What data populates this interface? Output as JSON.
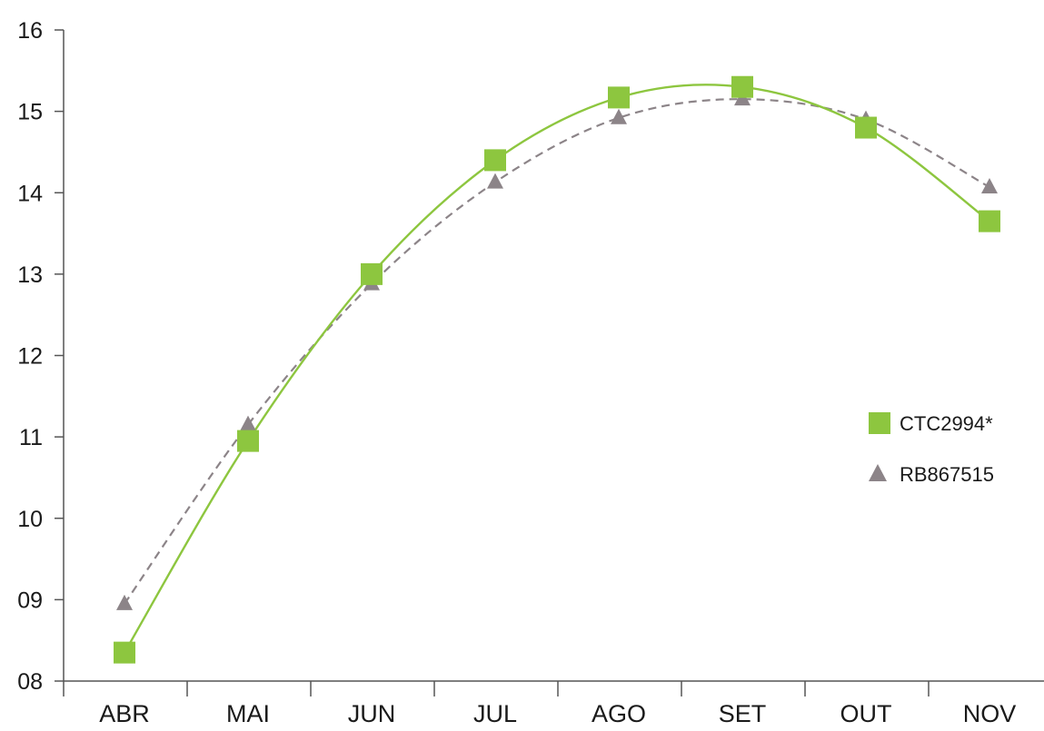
{
  "chart_data": {
    "type": "line",
    "title": "",
    "xlabel": "",
    "ylabel": "",
    "categories": [
      "ABR",
      "MAI",
      "JUN",
      "JUL",
      "AGO",
      "SET",
      "OUT",
      "NOV"
    ],
    "y_tick_labels": [
      "08",
      "09",
      "10",
      "11",
      "12",
      "13",
      "14",
      "15",
      "16"
    ],
    "ylim": [
      8,
      16
    ],
    "grid": false,
    "legend_position": "right",
    "series": [
      {
        "name": "CTC2994*",
        "values": [
          8.35,
          10.95,
          13.0,
          14.4,
          15.17,
          15.3,
          14.8,
          13.65
        ],
        "color": "#8dc63f",
        "marker": "square",
        "line_style": "solid"
      },
      {
        "name": "RB867515",
        "values": [
          8.95,
          11.15,
          12.88,
          14.13,
          14.92,
          15.15,
          14.9,
          14.07
        ],
        "color": "#8c8488",
        "marker": "triangle",
        "line_style": "dashed"
      }
    ]
  }
}
